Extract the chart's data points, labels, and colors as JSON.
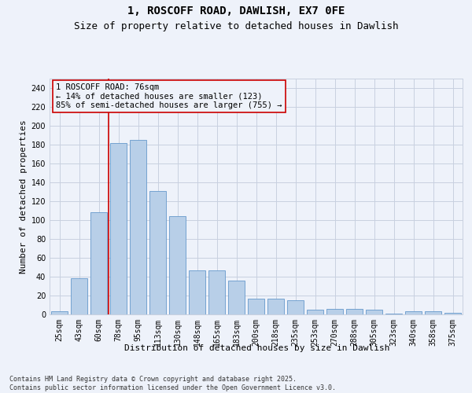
{
  "title1": "1, ROSCOFF ROAD, DAWLISH, EX7 0FE",
  "title2": "Size of property relative to detached houses in Dawlish",
  "xlabel": "Distribution of detached houses by size in Dawlish",
  "ylabel": "Number of detached properties",
  "categories": [
    "25sqm",
    "43sqm",
    "60sqm",
    "78sqm",
    "95sqm",
    "113sqm",
    "130sqm",
    "148sqm",
    "165sqm",
    "183sqm",
    "200sqm",
    "218sqm",
    "235sqm",
    "253sqm",
    "270sqm",
    "288sqm",
    "305sqm",
    "323sqm",
    "340sqm",
    "358sqm",
    "375sqm"
  ],
  "values": [
    3,
    38,
    108,
    182,
    185,
    131,
    104,
    47,
    47,
    36,
    17,
    17,
    15,
    5,
    6,
    6,
    5,
    1,
    3,
    3,
    2
  ],
  "bar_color": "#b8cfe8",
  "bar_edge_color": "#6699cc",
  "annotation_text_line1": "1 ROSCOFF ROAD: 76sqm",
  "annotation_text_line2": "← 14% of detached houses are smaller (123)",
  "annotation_text_line3": "85% of semi-detached houses are larger (755) →",
  "red_line_color": "#cc0000",
  "annotation_box_edge_color": "#cc0000",
  "ylim_max": 250,
  "yticks": [
    0,
    20,
    40,
    60,
    80,
    100,
    120,
    140,
    160,
    180,
    200,
    220,
    240
  ],
  "background_color": "#eef2fa",
  "grid_color": "#c8d0e0",
  "footer1": "Contains HM Land Registry data © Crown copyright and database right 2025.",
  "footer2": "Contains public sector information licensed under the Open Government Licence v3.0.",
  "title_fontsize": 10,
  "subtitle_fontsize": 9,
  "axis_label_fontsize": 8,
  "tick_fontsize": 7,
  "annotation_fontsize": 7.5,
  "footer_fontsize": 6,
  "red_line_xindex": 2.5
}
